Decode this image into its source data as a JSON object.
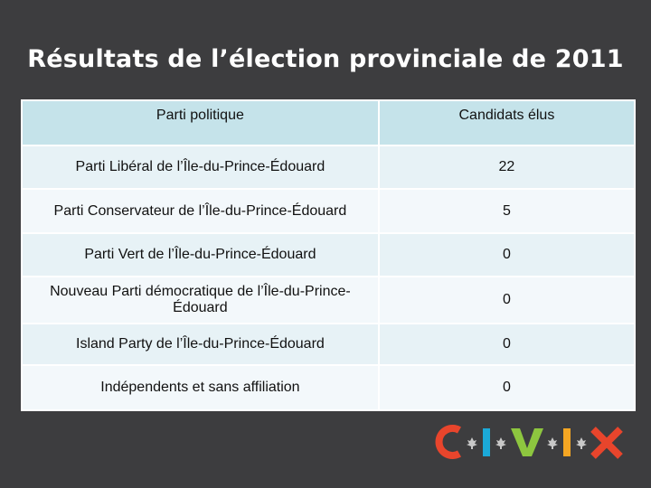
{
  "slide": {
    "title": "Résultats de l’élection provinciale de 2011"
  },
  "table": {
    "headers": [
      "Parti politique",
      "Candidats élus"
    ],
    "rows": [
      [
        "Parti Libéral de l’Île-du-Prince-Édouard",
        "22"
      ],
      [
        "Parti Conservateur de l’Île-du-Prince-Édouard",
        "5"
      ],
      [
        "Parti Vert de l’Île-du-Prince-Édouard",
        "0"
      ],
      [
        "Nouveau Parti démocratique de l’Île-du-Prince-Édouard",
        "0"
      ],
      [
        "Island Party de l’Île-du-Prince-Édouard",
        "0"
      ],
      [
        "Indépendents et sans affiliation",
        "0"
      ]
    ]
  },
  "logo": {
    "text": "CIVIX",
    "colors": {
      "C": "#e8452c",
      "I1": "#1ba9d8",
      "V": "#8dc63f",
      "I2": "#f5a623",
      "X": "#e8452c",
      "leaf": "#c8c8c8"
    }
  }
}
